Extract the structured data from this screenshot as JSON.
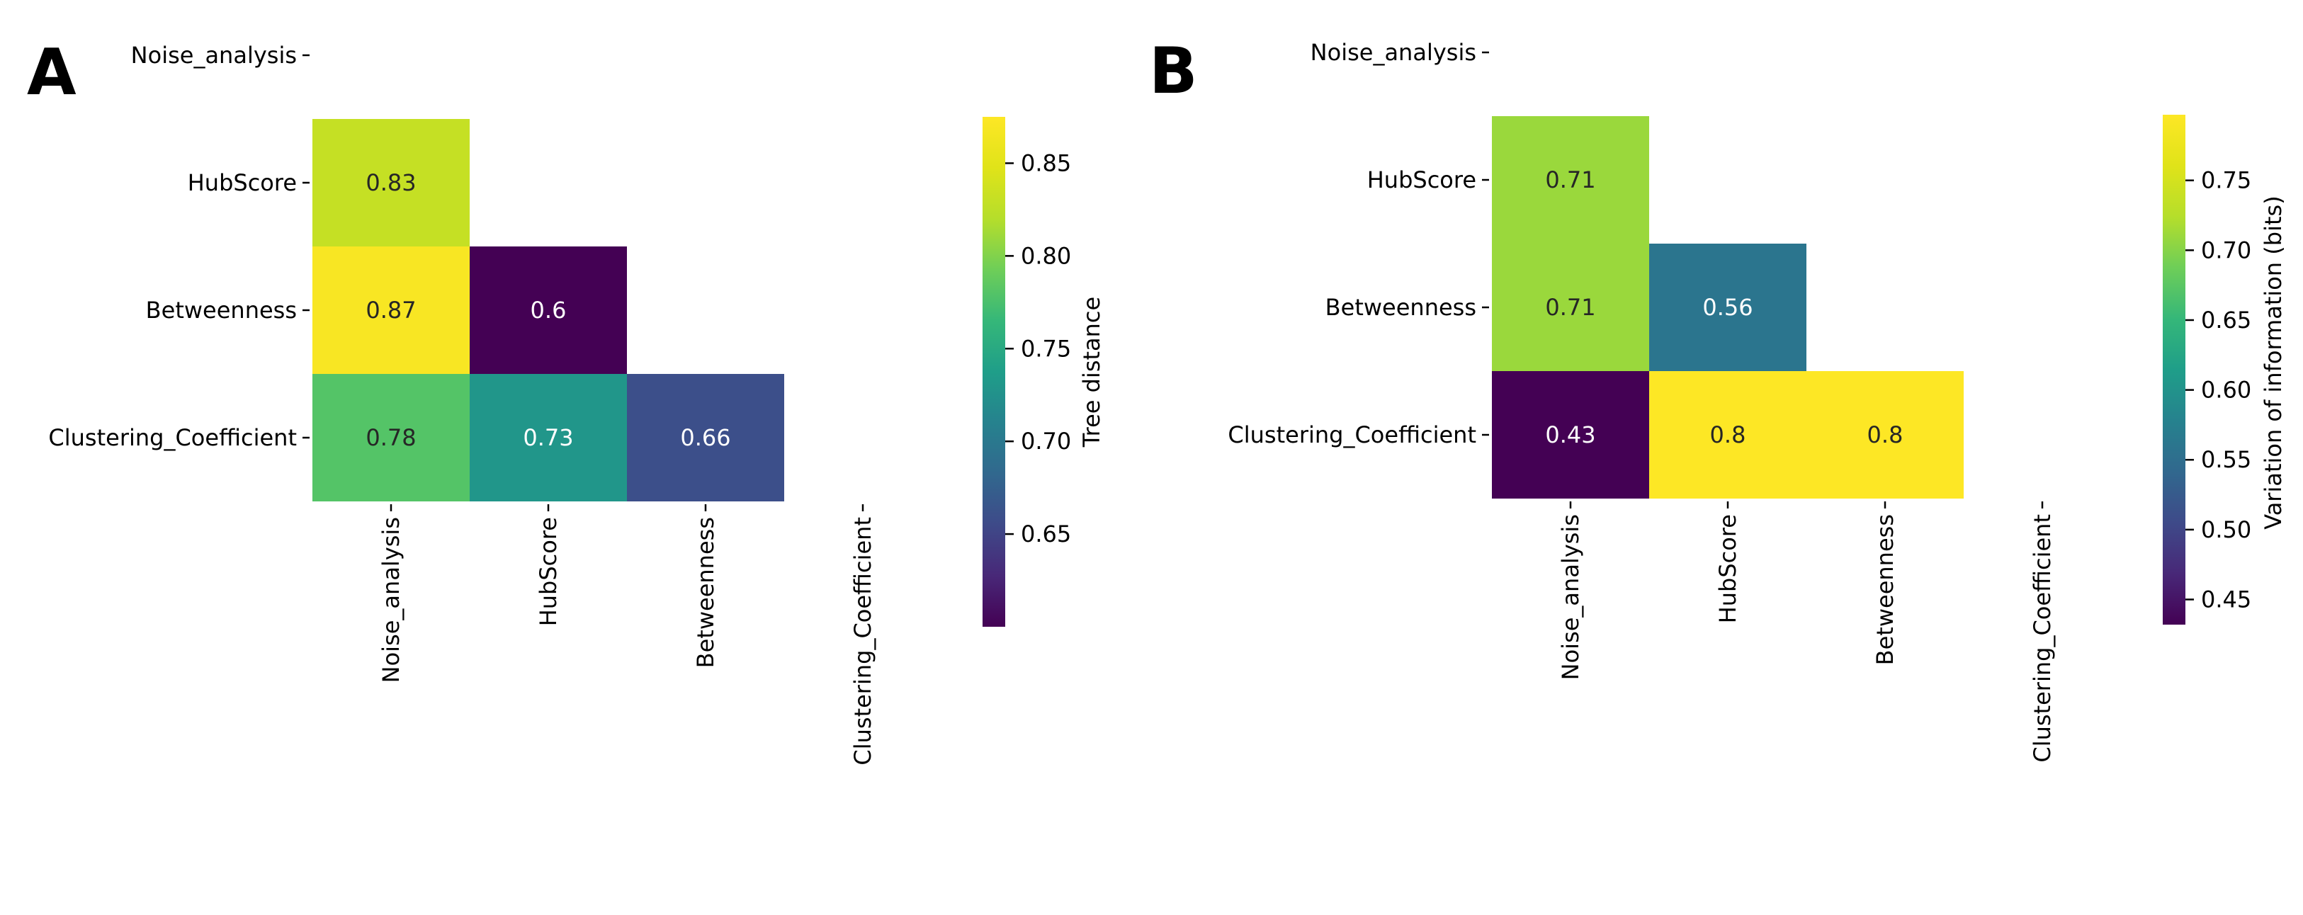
{
  "chart_data": [
    {
      "type": "heatmap",
      "panel": "A",
      "row_labels": [
        "Noise_analysis",
        "HubScore",
        "Betweenness",
        "Clustering_Coefficient"
      ],
      "col_labels": [
        "Noise_analysis",
        "HubScore",
        "Betweenness",
        "Clustering_Coefficient"
      ],
      "cells": [
        {
          "row": 1,
          "col": 0,
          "value": 0.83,
          "label": "0.83"
        },
        {
          "row": 2,
          "col": 0,
          "value": 0.87,
          "label": "0.87"
        },
        {
          "row": 2,
          "col": 1,
          "value": 0.6,
          "label": "0.6"
        },
        {
          "row": 3,
          "col": 0,
          "value": 0.78,
          "label": "0.78"
        },
        {
          "row": 3,
          "col": 1,
          "value": 0.73,
          "label": "0.73"
        },
        {
          "row": 3,
          "col": 2,
          "value": 0.66,
          "label": "0.66"
        }
      ],
      "colormap": "viridis",
      "colorbar": {
        "label": "Tree distance",
        "vmin": 0.6,
        "vmax": 0.875,
        "ticks": [
          0.65,
          0.7,
          0.75,
          0.8,
          0.85
        ],
        "tick_labels": [
          "0.65",
          "0.70",
          "0.75",
          "0.80",
          "0.85"
        ]
      },
      "mask": "upper triangle incl. diagonal"
    },
    {
      "type": "heatmap",
      "panel": "B",
      "row_labels": [
        "Noise_analysis",
        "HubScore",
        "Betweenness",
        "Clustering_Coefficient"
      ],
      "col_labels": [
        "Noise_analysis",
        "HubScore",
        "Betweenness",
        "Clustering_Coefficient"
      ],
      "cells": [
        {
          "row": 1,
          "col": 0,
          "value": 0.71,
          "label": "0.71"
        },
        {
          "row": 2,
          "col": 0,
          "value": 0.71,
          "label": "0.71"
        },
        {
          "row": 2,
          "col": 1,
          "value": 0.56,
          "label": "0.56"
        },
        {
          "row": 3,
          "col": 0,
          "value": 0.43,
          "label": "0.43"
        },
        {
          "row": 3,
          "col": 1,
          "value": 0.8,
          "label": "0.8"
        },
        {
          "row": 3,
          "col": 2,
          "value": 0.8,
          "label": "0.8"
        }
      ],
      "colormap": "viridis",
      "colorbar": {
        "label": "Variation of information (bits)",
        "vmin": 0.432,
        "vmax": 0.797,
        "ticks": [
          0.45,
          0.5,
          0.55,
          0.6,
          0.65,
          0.7,
          0.75
        ],
        "tick_labels": [
          "0.45",
          "0.50",
          "0.55",
          "0.60",
          "0.65",
          "0.70",
          "0.75"
        ]
      },
      "mask": "upper triangle incl. diagonal"
    }
  ],
  "panel_labels": [
    "A",
    "B"
  ]
}
